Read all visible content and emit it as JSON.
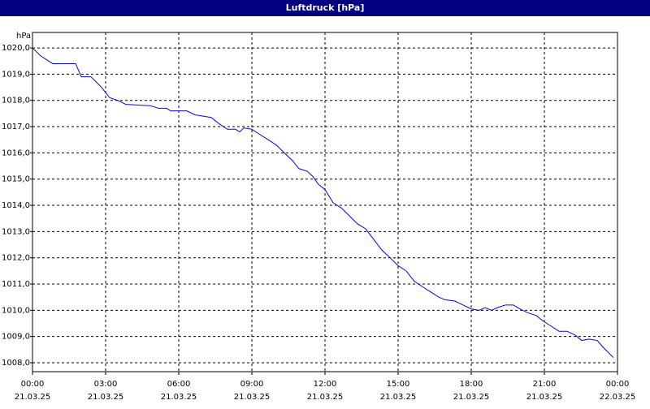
{
  "chart_data": {
    "type": "line",
    "title": "Luftdruck [hPa]",
    "y_label": "hPa",
    "xlim": [
      0,
      24
    ],
    "ylim": [
      1007.66,
      1020.59
    ],
    "grid": true,
    "xticks": [
      {
        "value": 0,
        "label": "00:00"
      },
      {
        "value": 3,
        "label": "03:00"
      },
      {
        "value": 6,
        "label": "06:00"
      },
      {
        "value": 9,
        "label": "09:00"
      },
      {
        "value": 12,
        "label": "12:00"
      },
      {
        "value": 15,
        "label": "15:00"
      },
      {
        "value": 18,
        "label": "18:00"
      },
      {
        "value": 21,
        "label": "21:00"
      },
      {
        "value": 24,
        "label": "00:00"
      }
    ],
    "xtick_dates": [
      "21.03.25",
      "21.03.25",
      "21.03.25",
      "21.03.25",
      "21.03.25",
      "21.03.25",
      "21.03.25",
      "21.03.25",
      "22.03.25"
    ],
    "yticks": [
      {
        "value": 1008,
        "label": "1008,0"
      },
      {
        "value": 1009,
        "label": "1009,0"
      },
      {
        "value": 1010,
        "label": "1010,0"
      },
      {
        "value": 1011,
        "label": "1011,0"
      },
      {
        "value": 1012,
        "label": "1012,0"
      },
      {
        "value": 1013,
        "label": "1013,0"
      },
      {
        "value": 1014,
        "label": "1014,0"
      },
      {
        "value": 1015,
        "label": "1015,0"
      },
      {
        "value": 1016,
        "label": "1016,0"
      },
      {
        "value": 1017,
        "label": "1017,0"
      },
      {
        "value": 1018,
        "label": "1018,0"
      },
      {
        "value": 1019,
        "label": "1019,0"
      },
      {
        "value": 1020,
        "label": "1020,0"
      }
    ],
    "x": [
      0,
      0.33,
      0.83,
      1.77,
      2,
      2.4,
      2.83,
      3.17,
      3.5,
      3.83,
      4.83,
      5.17,
      5.5,
      5.67,
      6.33,
      6.67,
      7,
      7.33,
      7.67,
      8,
      8.33,
      8.5,
      8.67,
      9,
      9.33,
      9.67,
      10,
      10.33,
      10.67,
      10.93,
      11.27,
      11.5,
      11.73,
      12,
      12.33,
      12.67,
      13,
      13.33,
      13.67,
      14,
      14.33,
      14.67,
      15,
      15.33,
      15.67,
      16,
      16.33,
      16.67,
      16.93,
      17.33,
      17.67,
      18,
      18.33,
      18.57,
      18.83,
      19.07,
      19.4,
      19.73,
      20,
      20.33,
      20.67,
      20.93,
      21.27,
      21.6,
      21.93,
      22.27,
      22.53,
      22.83,
      23.17,
      23.4,
      23.67,
      23.83
    ],
    "series": [
      {
        "color": "#0000ff",
        "values": [
          1020.0,
          1019.7,
          1019.4,
          1019.4,
          1018.9,
          1018.9,
          1018.5,
          1018.1,
          1018.0,
          1017.85,
          1017.8,
          1017.7,
          1017.7,
          1017.6,
          1017.6,
          1017.45,
          1017.4,
          1017.35,
          1017.1,
          1016.9,
          1016.9,
          1016.8,
          1016.95,
          1016.9,
          1016.7,
          1016.5,
          1016.3,
          1016.0,
          1015.7,
          1015.4,
          1015.3,
          1015.1,
          1014.8,
          1014.6,
          1014.1,
          1013.9,
          1013.6,
          1013.3,
          1013.1,
          1012.7,
          1012.3,
          1012.0,
          1011.7,
          1011.5,
          1011.1,
          1010.9,
          1010.7,
          1010.5,
          1010.4,
          1010.35,
          1010.2,
          1010.05,
          1010.0,
          1010.1,
          1010.0,
          1010.1,
          1010.2,
          1010.2,
          1010.05,
          1009.9,
          1009.8,
          1009.6,
          1009.4,
          1009.2,
          1009.2,
          1009.05,
          1008.85,
          1008.9,
          1008.85,
          1008.6,
          1008.35,
          1008.2
        ]
      }
    ]
  }
}
